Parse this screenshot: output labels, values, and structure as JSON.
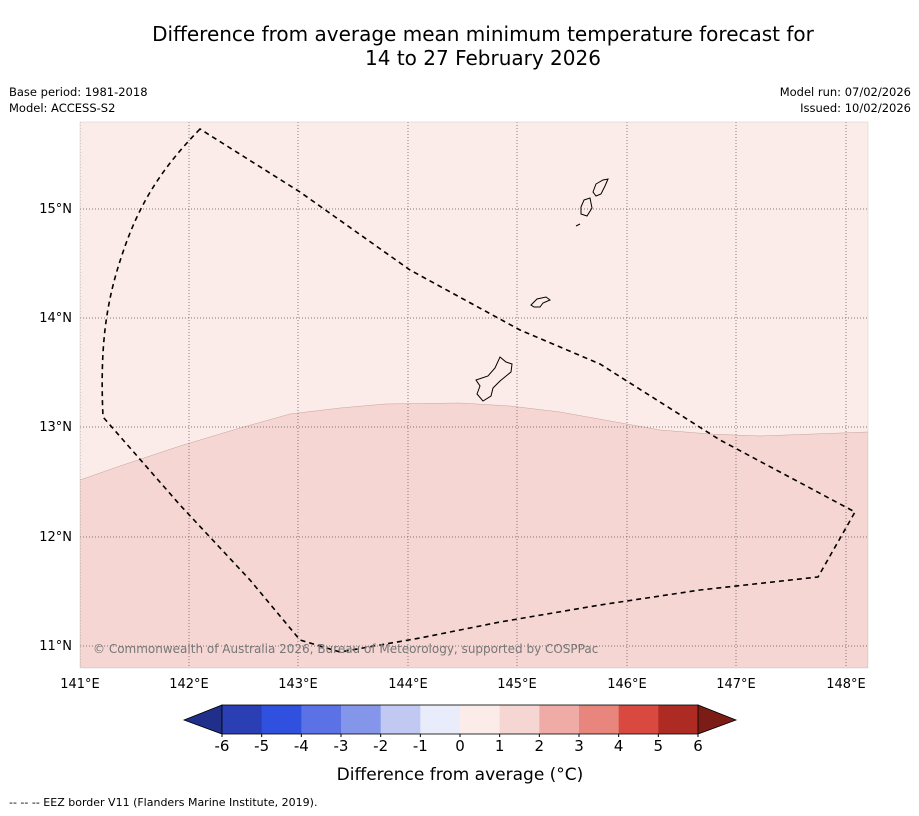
{
  "title_line1": "Difference from average mean minimum temperature forecast for",
  "title_line2": "14 to 27 February 2026",
  "base_period": "Base period: 1981-2018",
  "model": "Model: ACCESS-S2",
  "model_run": "Model run: 07/02/2026",
  "issued": "Issued: 10/02/2026",
  "copyright": "© Commonwealth of Australia 2026, Bureau of Meteorology, supported by COSPPac",
  "footnote": "-- -- -- EEZ border V11 (Flanders Marine Institute, 2019).",
  "map": {
    "lon_range": [
      141.0,
      148.2
    ],
    "lat_range": [
      10.8,
      15.8
    ],
    "lon_ticks": [
      "141°E",
      "142°E",
      "143°E",
      "144°E",
      "145°E",
      "146°E",
      "147°E",
      "148°E"
    ],
    "lat_ticks": [
      "15°N",
      "14°N",
      "13°N",
      "12°N",
      "11°N"
    ],
    "regions": [
      {
        "name": "0 to 1 °C",
        "color": "#fbebe9"
      },
      {
        "name": "1 to 2 °C",
        "color": "#f5d6d3"
      }
    ]
  },
  "colorbar": {
    "label": "Difference from average (°C)",
    "ticks": [
      "-6",
      "-5",
      "-4",
      "-3",
      "-2",
      "-1",
      "0",
      "1",
      "2",
      "3",
      "4",
      "5",
      "6"
    ],
    "colors": [
      "#2a3fb4",
      "#3050e0",
      "#5a72e6",
      "#8496ea",
      "#c1c9f3",
      "#e9edfb",
      "#fbebe9",
      "#f5d6d3",
      "#efaca7",
      "#e8867e",
      "#d9493f",
      "#ad2b22"
    ],
    "under_color": "#1f2f8a",
    "over_color": "#7b1c17"
  }
}
